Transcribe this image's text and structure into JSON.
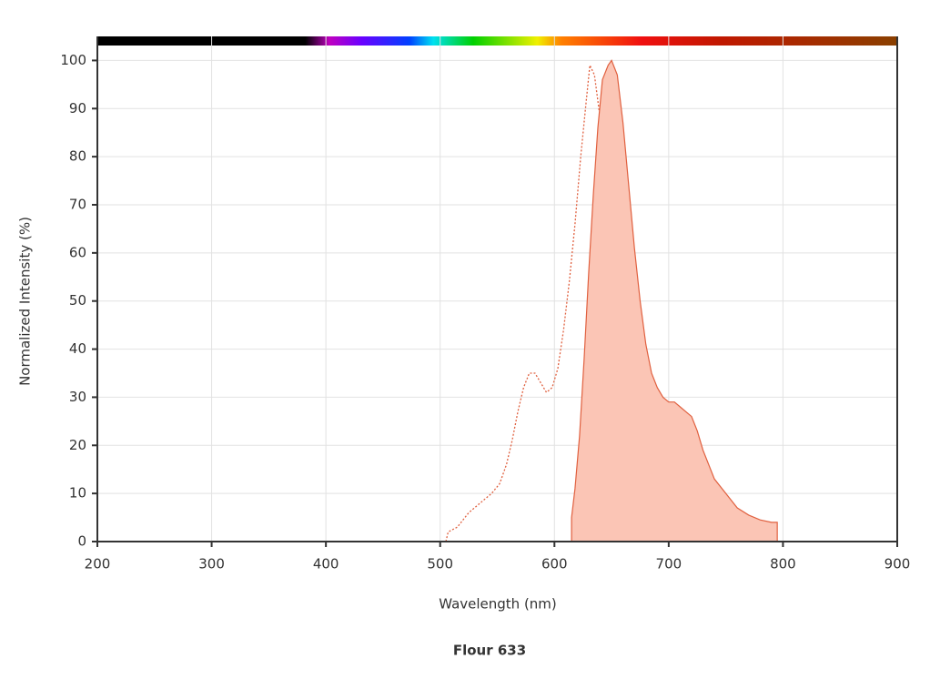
{
  "chart_data": {
    "type": "line",
    "title": "Flour 633",
    "x_label": "Wavelength (nm)",
    "y_label": "Normalized Intensity (%)",
    "xlim": [
      200,
      900
    ],
    "ylim": [
      0,
      105
    ],
    "xticks": [
      200,
      300,
      400,
      500,
      600,
      700,
      800,
      900
    ],
    "yticks": [
      0,
      10,
      20,
      30,
      40,
      50,
      60,
      70,
      80,
      90,
      100
    ],
    "grid": true,
    "series": [
      {
        "color": "#e0603f",
        "style": "dotted",
        "fill": false,
        "x": [
          505,
          507,
          515,
          525,
          535,
          545,
          552,
          558,
          563,
          568,
          573,
          578,
          583,
          588,
          593,
          598,
          603,
          608,
          613,
          618,
          623,
          628,
          631,
          635,
          640,
          645,
          650,
          655,
          660,
          665,
          670,
          675,
          680,
          685,
          690
        ],
        "values": [
          0,
          2,
          3,
          6,
          8,
          10,
          12,
          16,
          21,
          27,
          32,
          35,
          35,
          33,
          31,
          32,
          36,
          44,
          54,
          66,
          80,
          92,
          99,
          97,
          88,
          72,
          52,
          34,
          22,
          14,
          8,
          5,
          2,
          1,
          0
        ]
      },
      {
        "color": "#e0603f",
        "style": "solid",
        "fill": true,
        "fill_color": "#fbc5b5",
        "x": [
          615,
          615,
          618,
          622,
          626,
          630,
          634,
          638,
          642,
          647,
          650,
          655,
          660,
          665,
          670,
          675,
          680,
          685,
          690,
          695,
          700,
          705,
          710,
          715,
          720,
          725,
          730,
          735,
          740,
          750,
          760,
          770,
          780,
          790,
          795,
          795
        ],
        "values": [
          0,
          5,
          11,
          22,
          38,
          56,
          72,
          86,
          96,
          99,
          100,
          97,
          87,
          74,
          61,
          50,
          41,
          35,
          32,
          30,
          29,
          29,
          28,
          27,
          26,
          23,
          19,
          16,
          13,
          10,
          7,
          5.5,
          4.5,
          4,
          4,
          0
        ]
      }
    ]
  }
}
